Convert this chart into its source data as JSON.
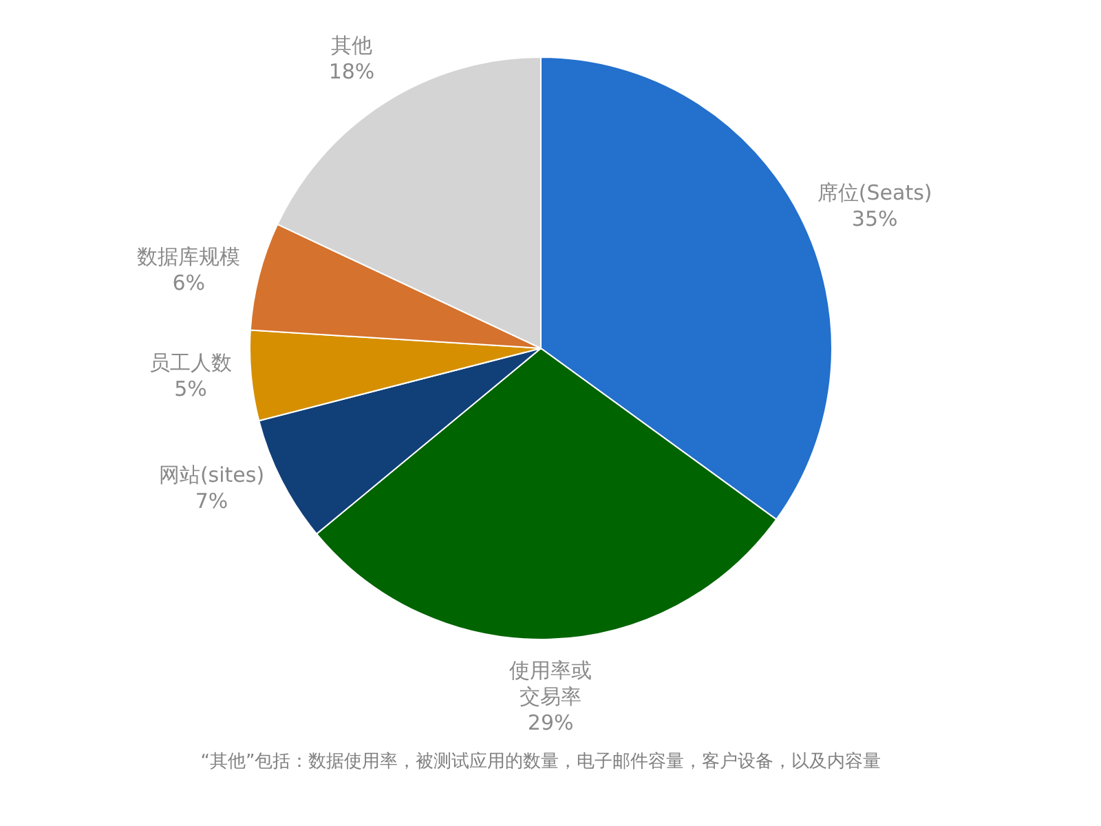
{
  "chart_data": {
    "type": "pie",
    "categories": [
      "席位(Seats)",
      "使用率或交易率",
      "网站(sites)",
      "员工人数",
      "数据库规模",
      "其他"
    ],
    "values": [
      35,
      29,
      7,
      5,
      6,
      18
    ],
    "value_labels": [
      "35%",
      "29%",
      "7%",
      "5%",
      "6%",
      "18%"
    ],
    "colors": [
      "#2370cd",
      "#006400",
      "#113f78",
      "#d58f00",
      "#d5722d",
      "#d4d4d4"
    ],
    "annotations": [
      "“其他”包括：数据使用率，被测试应用的数量，电子邮件容量，客户设备，以及内容量"
    ]
  }
}
